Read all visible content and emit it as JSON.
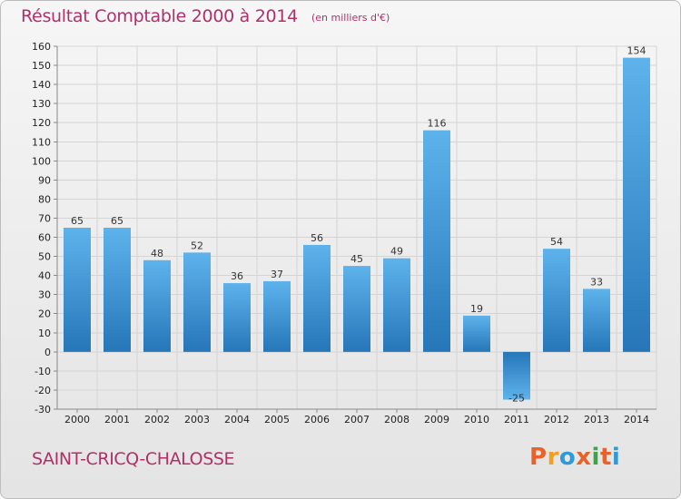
{
  "header": {
    "title": "Résultat Comptable 2000 à 2014",
    "subtitle": "(en milliers d'€)"
  },
  "footer": {
    "commune": "SAINT-CRICQ-CHALOSSE",
    "logo": "Proxiti",
    "logo_colors": [
      "#e8632b",
      "#f3a01c",
      "#2e9ad8",
      "#e8632b",
      "#3ea34a",
      "#e8632b",
      "#2e9ad8"
    ]
  },
  "colors": {
    "bar_light": "#5eb3ec",
    "bar_dark": "#2676b8",
    "grid": "#d4d4d4",
    "axis": "#888888"
  },
  "chart_data": {
    "type": "bar",
    "title": "Résultat Comptable 2000 à 2014",
    "xlabel": "",
    "ylabel": "(en milliers d'€)",
    "categories": [
      "2000",
      "2001",
      "2002",
      "2003",
      "2004",
      "2005",
      "2006",
      "2007",
      "2008",
      "2009",
      "2010",
      "2011",
      "2012",
      "2013",
      "2014"
    ],
    "values": [
      65,
      65,
      48,
      52,
      36,
      37,
      56,
      45,
      49,
      116,
      19,
      -25,
      54,
      33,
      154
    ],
    "ylim": [
      -30,
      160
    ],
    "yticks": [
      -30,
      -20,
      -10,
      0,
      10,
      20,
      30,
      40,
      50,
      60,
      70,
      80,
      90,
      100,
      110,
      120,
      130,
      140,
      150,
      160
    ],
    "grid": true
  }
}
